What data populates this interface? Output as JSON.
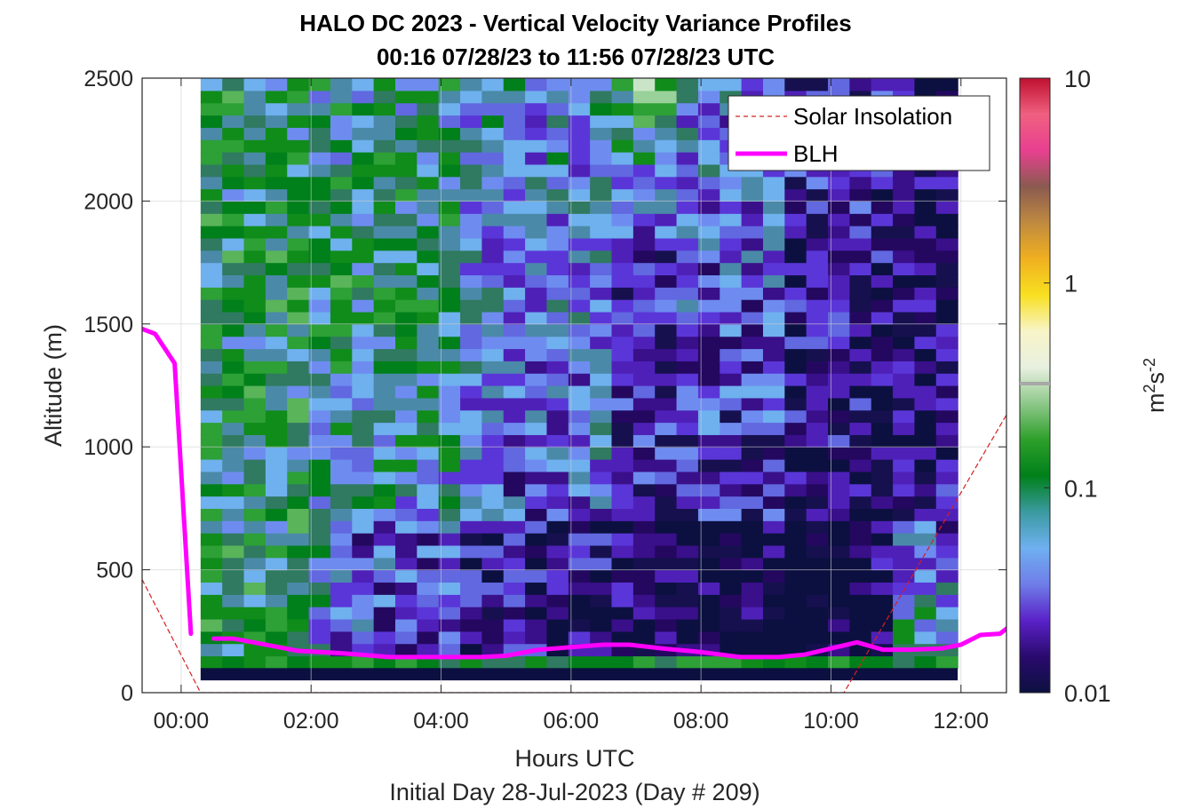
{
  "chart_data": {
    "type": "heatmap",
    "title_line1": "HALO DC 2023 - Vertical Velocity Variance Profiles",
    "title_line2": "00:16 07/28/23 to 11:56 07/28/23  UTC",
    "xlabel": "Hours UTC",
    "subxlabel": "Initial Day 28-Jul-2023 (Day # 209)",
    "ylabel": "Altitude (m)",
    "xlim": [
      -0.6,
      12.7
    ],
    "ylim": [
      0,
      2500
    ],
    "x_ticks": [
      0,
      2,
      4,
      6,
      8,
      10,
      12
    ],
    "x_tick_labels": [
      "00:00",
      "02:00",
      "04:00",
      "06:00",
      "08:00",
      "10:00",
      "12:00"
    ],
    "y_ticks": [
      0,
      500,
      1000,
      1500,
      2000,
      2500
    ],
    "y_tick_labels": [
      "0",
      "500",
      "1000",
      "1500",
      "2000",
      "2500"
    ],
    "grid": true,
    "colorbar": {
      "label": "m",
      "label_sup1": "2",
      "label_mid": "s",
      "label_sup2": "-2",
      "scale": "log",
      "range": [
        0.01,
        10
      ],
      "ticks": [
        0.01,
        0.1,
        1,
        10
      ],
      "tick_labels": [
        "0.01",
        "0.1",
        "1",
        "10"
      ],
      "colors": [
        "#0c1040",
        "#2a0a6e",
        "#5a22c8",
        "#6f7de8",
        "#6fb0f0",
        "#3a9aa0",
        "#00801a",
        "#2da02a",
        "#8ec88a",
        "#e8f0e0",
        "#f8f4c8",
        "#f8e020",
        "#f0b020",
        "#c08a40",
        "#8a5a50",
        "#e84090",
        "#f06080",
        "#c01030"
      ]
    },
    "legend": {
      "placement": "top-right",
      "entries": [
        "Solar Insolation",
        "BLH"
      ]
    },
    "series": [
      {
        "name": "Solar Insolation",
        "style": "dashed",
        "color": "#d62020",
        "x": [
          -0.6,
          0.3,
          10.2,
          12.7
        ],
        "y": [
          460,
          0,
          0,
          1130
        ]
      },
      {
        "name": "BLH",
        "style": "solid",
        "color": "#ff00ff",
        "x": [
          -0.6,
          -0.4,
          -0.1,
          0.15,
          null,
          0.5,
          0.8,
          1.2,
          1.8,
          2.5,
          3.2,
          4.0,
          4.6,
          5.0,
          5.5,
          6.0,
          6.5,
          6.9,
          7.4,
          8.0,
          8.6,
          9.2,
          9.6,
          10.0,
          10.4,
          10.8,
          11.2,
          11.7,
          12.0,
          12.3,
          12.6,
          12.7
        ],
        "y": [
          1480,
          1460,
          1340,
          240,
          null,
          220,
          220,
          200,
          170,
          160,
          145,
          145,
          145,
          150,
          175,
          185,
          195,
          195,
          180,
          165,
          145,
          145,
          155,
          180,
          205,
          175,
          175,
          180,
          195,
          235,
          240,
          260
        ]
      }
    ],
    "heatmap": {
      "x_start": 0.3,
      "x_end": 11.95,
      "y_bottom": 100,
      "y_top": 2500,
      "n_cols": 35,
      "n_rows": 48,
      "palette_low_to_high": [
        "#0c1040",
        "#16104f",
        "#24085f",
        "#3a0f8a",
        "#4f20b8",
        "#5a36d8",
        "#6168e0",
        "#6e8cf0",
        "#6fb0ee",
        "#4a8aa8",
        "#2f7a60",
        "#00801a",
        "#108c1a",
        "#2da036",
        "#59b45a",
        "#9ad19a",
        "#c9e4c6",
        "#e6efd8",
        "#f4e8a8",
        "#f8f0c0"
      ],
      "value_regime_notes": [
        "",
        ""
      ]
    }
  }
}
